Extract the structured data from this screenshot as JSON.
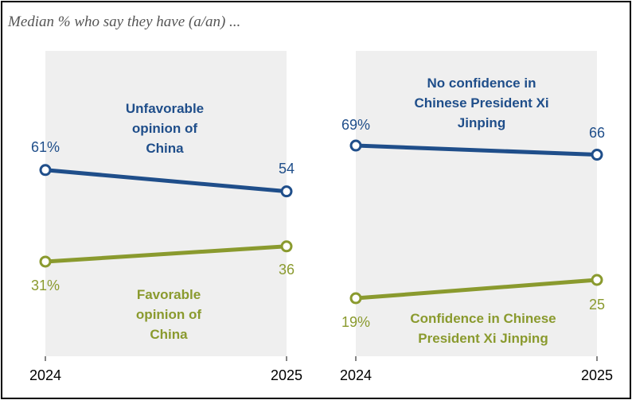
{
  "subtitle": "Median % who say they have (a/an) ...",
  "colors": {
    "panel_bg": "#efefef",
    "unfavorable_blue": "#1f4e8a",
    "favorable_green": "#8a9a2e"
  },
  "chart_data": [
    {
      "type": "line",
      "x": [
        "2024",
        "2025"
      ],
      "series": [
        {
          "name": "Unfavorable opinion of China",
          "label_lines": [
            "Unfavorable",
            "opinion of",
            "China"
          ],
          "values": [
            61,
            54
          ],
          "value_labels": [
            "61%",
            "54"
          ]
        },
        {
          "name": "Favorable opinion of China",
          "label_lines": [
            "Favorable",
            "opinion of",
            "China"
          ],
          "values": [
            31,
            36
          ],
          "value_labels": [
            "31%",
            "36"
          ]
        }
      ],
      "ylim": [
        0,
        100
      ]
    },
    {
      "type": "line",
      "x": [
        "2024",
        "2025"
      ],
      "series": [
        {
          "name": "No confidence in Chinese President Xi Jinping",
          "label_lines": [
            "No confidence in",
            "Chinese President Xi",
            "Jinping"
          ],
          "values": [
            69,
            66
          ],
          "value_labels": [
            "69%",
            "66"
          ]
        },
        {
          "name": "Confidence in Chinese President Xi Jinping",
          "label_lines": [
            "Confidence in Chinese",
            "President Xi Jinping"
          ],
          "values": [
            19,
            25
          ],
          "value_labels": [
            "19%",
            "25"
          ]
        }
      ],
      "ylim": [
        0,
        100
      ]
    }
  ]
}
